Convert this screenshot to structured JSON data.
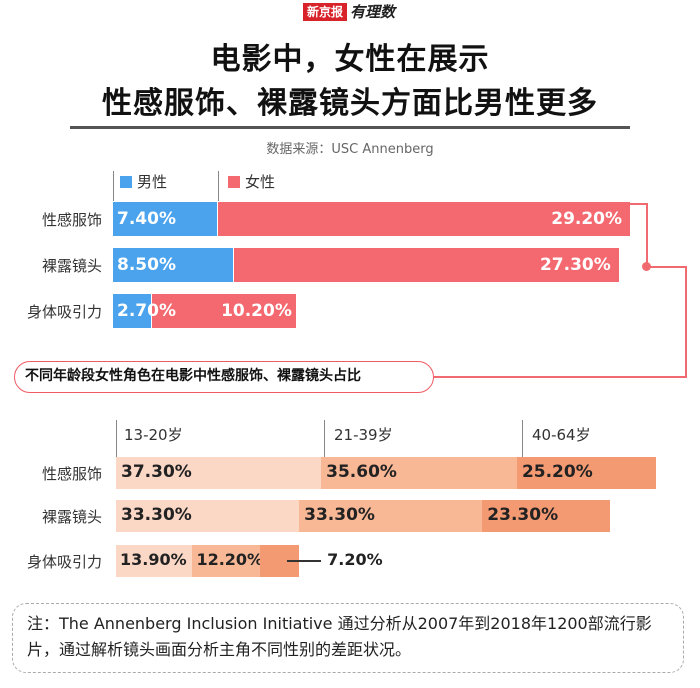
{
  "logo": {
    "brand": "新京报",
    "sub": "有理数"
  },
  "title_line1": "电影中，女性在展示",
  "title_line2": "性感服饰、裸露镜头方面比男性更多",
  "source": "数据来源：USC Annenberg",
  "colors": {
    "male": "#4aa3ec",
    "female": "#f4686f",
    "age1": "#fbd7c6",
    "age2": "#f8b795",
    "age3": "#f39a72"
  },
  "chart_data": [
    {
      "type": "bar",
      "stacked": true,
      "orientation": "horizontal",
      "title": "电影中，女性在展示性感服饰、裸露镜头方面比男性更多",
      "categories": [
        "性感服饰",
        "裸露镜头",
        "身体吸引力"
      ],
      "series": [
        {
          "name": "男性",
          "values": [
            7.4,
            8.5,
            2.7
          ],
          "labels": [
            "7.40%",
            "8.50%",
            "2.70%"
          ]
        },
        {
          "name": "女性",
          "values": [
            29.2,
            27.3,
            10.2
          ],
          "labels": [
            "29.20%",
            "27.30%",
            "10.20%"
          ]
        }
      ],
      "legend": "top-left",
      "unit": "%"
    },
    {
      "type": "bar",
      "stacked": true,
      "orientation": "horizontal",
      "title": "不同年龄段女性角色在电影中性感服饰、裸露镜头占比",
      "categories": [
        "性感服饰",
        "裸露镜头",
        "身体吸引力"
      ],
      "series": [
        {
          "name": "13-20岁",
          "values": [
            37.3,
            33.3,
            13.9
          ],
          "labels": [
            "37.30%",
            "33.30%",
            "13.90%"
          ]
        },
        {
          "name": "21-39岁",
          "values": [
            35.6,
            33.3,
            12.2
          ],
          "labels": [
            "35.60%",
            "33.30%",
            "12.20%"
          ]
        },
        {
          "name": "40-64岁",
          "values": [
            25.2,
            23.3,
            7.2
          ],
          "labels": [
            "25.20%",
            "23.30%",
            "7.20%"
          ]
        }
      ],
      "legend": "top",
      "unit": "%"
    }
  ],
  "note": "注：The Annenberg Inclusion Initiative 通过分析从2007年到2018年1200部流行影片，通过解析镜头画面分析主角不同性别的差距状况。"
}
